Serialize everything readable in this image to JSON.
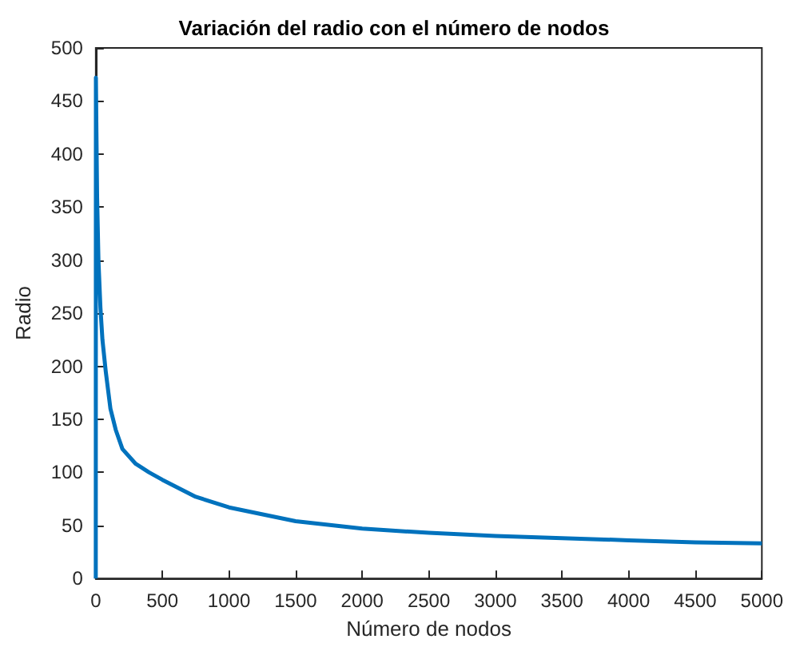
{
  "chart_data": {
    "type": "line",
    "title": "Variación del radio con el número de nodos",
    "xlabel": "Número de nodos",
    "ylabel": "Radio",
    "x": [
      0,
      1,
      5,
      10,
      20,
      35,
      50,
      75,
      110,
      150,
      200,
      300,
      400,
      500,
      750,
      1000,
      1500,
      2000,
      2500,
      3000,
      3500,
      4000,
      4500,
      5000
    ],
    "series": [
      {
        "color": "#0072bd",
        "values": [
          0,
          472,
          420,
          360,
          300,
          255,
          225,
          195,
          160,
          140,
          122,
          108,
          100,
          93,
          77,
          67,
          54,
          47,
          43,
          40,
          38,
          36,
          34,
          33
        ]
      }
    ],
    "xlim": [
      0,
      5000
    ],
    "xticks": [
      0,
      500,
      1000,
      1500,
      2000,
      2500,
      3000,
      3500,
      4000,
      4500,
      5000
    ],
    "ylim": [
      0,
      500
    ],
    "yticks": [
      0,
      50,
      100,
      150,
      200,
      250,
      300,
      350,
      400,
      450,
      500
    ],
    "grid": false,
    "marker": "none",
    "line_style": "solid"
  }
}
